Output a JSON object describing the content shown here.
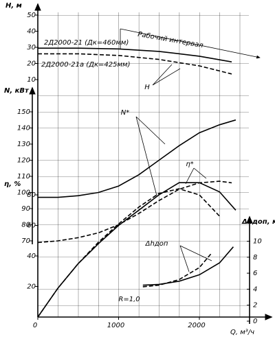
{
  "chart_data": [
    {
      "type": "line",
      "y_label": "H, м",
      "ylim": [
        10,
        50
      ],
      "yticks": [
        10,
        20,
        30,
        40,
        50
      ],
      "series": [
        {
          "name": "2Д2000-21 (Дк=460мм)",
          "color": "#000000",
          "style": "solid",
          "x": [
            0,
            500,
            1000,
            1500,
            2000,
            2400
          ],
          "values": [
            29.5,
            29.5,
            29,
            27.5,
            24.5,
            21
          ]
        },
        {
          "name": "2Д2000-21а (Дк=425мм)",
          "color": "#000000",
          "style": "dashed",
          "x": [
            0,
            500,
            1000,
            1500,
            2000,
            2400
          ],
          "values": [
            26,
            26,
            25,
            22.5,
            18.5,
            13.5
          ]
        }
      ],
      "annotations": [
        "Рабочий интервал",
        "H"
      ]
    },
    {
      "type": "line",
      "y_label": "N, кВт",
      "ylim": [
        70,
        150
      ],
      "yticks": [
        70,
        80,
        90,
        100,
        110,
        120,
        130,
        140,
        150
      ],
      "series": [
        {
          "color": "#000000",
          "style": "solid",
          "x": [
            0,
            250,
            500,
            750,
            1000,
            1250,
            1500,
            1750,
            2000,
            2250,
            2450
          ],
          "values": [
            97,
            97,
            98,
            100,
            104,
            111,
            120,
            129,
            137,
            142,
            145
          ]
        },
        {
          "color": "#000000",
          "style": "dashed",
          "x": [
            0,
            250,
            500,
            750,
            1000,
            1250,
            1500,
            1750,
            2000,
            2250,
            2400
          ],
          "values": [
            69,
            70,
            72,
            75,
            80,
            87,
            95,
            102,
            106,
            107,
            106
          ]
        }
      ],
      "annotations": [
        "N*"
      ]
    },
    {
      "type": "line",
      "y_label": "η, %",
      "ylim": [
        0,
        80
      ],
      "yticks": [
        20,
        40,
        60,
        80
      ],
      "x_label": "Q, м³/ч",
      "xlim": [
        0,
        2600
      ],
      "xticks": [
        0,
        1000,
        2000
      ],
      "grid": true,
      "series": [
        {
          "color": "#000000",
          "style": "solid",
          "x": [
            0,
            250,
            500,
            750,
            1000,
            1250,
            1500,
            1750,
            2000,
            2250,
            2450
          ],
          "values": [
            0,
            19,
            35,
            48,
            60,
            70,
            80,
            88,
            88,
            82,
            70
          ]
        },
        {
          "color": "#000000",
          "style": "dashed",
          "x": [
            0,
            250,
            500,
            750,
            1000,
            1250,
            1500,
            1750,
            2000,
            2250
          ],
          "values": [
            0,
            19,
            35,
            49,
            61,
            72,
            81,
            84,
            80,
            66
          ]
        }
      ],
      "annotations": [
        "η*"
      ]
    },
    {
      "type": "line",
      "y_label": "Δhдоп, м",
      "ylim": [
        0,
        10
      ],
      "yticks": [
        0,
        2,
        4,
        6,
        8,
        10
      ],
      "series": [
        {
          "color": "#000000",
          "style": "solid",
          "x": [
            1300,
            1500,
            1750,
            2000,
            2250,
            2420
          ],
          "values": [
            4.5,
            4.6,
            5.0,
            5.8,
            7.3,
            9.3
          ]
        },
        {
          "color": "#000000",
          "style": "dashed",
          "x": [
            1300,
            1500,
            1750,
            2000,
            2150
          ],
          "values": [
            4.3,
            4.5,
            5.2,
            6.7,
            8.5
          ]
        }
      ],
      "annotations": [
        "Δhдоп",
        "R=1,0"
      ]
    }
  ]
}
